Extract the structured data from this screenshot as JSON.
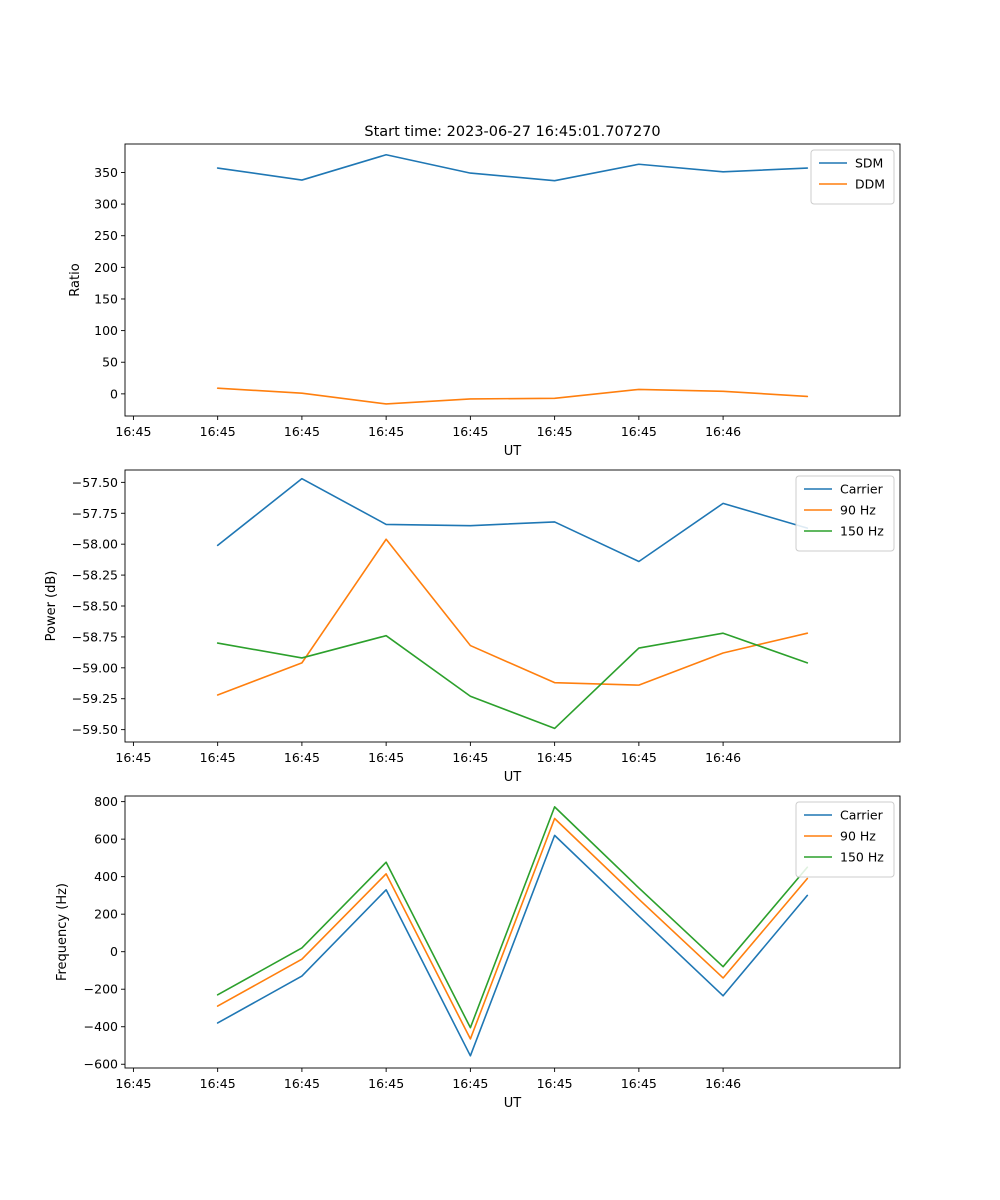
{
  "figure": {
    "title": "Start time: 2023-06-27 16:45:01.707270"
  },
  "colors": {
    "blue": "#1f77b4",
    "orange": "#ff7f0e",
    "green": "#2ca02c",
    "axis": "#000000",
    "legend_border": "#cccccc"
  },
  "chart_data": [
    {
      "type": "line",
      "xlabel": "UT",
      "ylabel": "Ratio",
      "x_tick_labels": [
        "16:45",
        "16:45",
        "16:45",
        "16:45",
        "16:45",
        "16:45",
        "16:45",
        "16:46"
      ],
      "x_index": [
        1,
        2,
        3,
        4,
        5,
        6,
        7,
        8
      ],
      "x_range": [
        -0.1,
        9.1
      ],
      "ylim": [
        -35,
        395
      ],
      "y_ticks": [
        0,
        50,
        100,
        150,
        200,
        250,
        300,
        350
      ],
      "y_tick_labels": [
        "0",
        "50",
        "100",
        "150",
        "200",
        "250",
        "300",
        "350"
      ],
      "legend_position": "upper right",
      "grid": false,
      "series": [
        {
          "name": "SDM",
          "color": "#1f77b4",
          "values": [
            357,
            338,
            378,
            349,
            337,
            363,
            351,
            357
          ]
        },
        {
          "name": "DDM",
          "color": "#ff7f0e",
          "values": [
            9,
            1,
            -16,
            -8,
            -7,
            7,
            4,
            -4
          ]
        }
      ]
    },
    {
      "type": "line",
      "xlabel": "UT",
      "ylabel": "Power (dB)",
      "x_tick_labels": [
        "16:45",
        "16:45",
        "16:45",
        "16:45",
        "16:45",
        "16:45",
        "16:45",
        "16:46"
      ],
      "x_index": [
        1,
        2,
        3,
        4,
        5,
        6,
        7,
        8
      ],
      "x_range": [
        -0.1,
        9.1
      ],
      "ylim": [
        -59.6,
        -57.4
      ],
      "y_ticks": [
        -57.5,
        -57.75,
        -58.0,
        -58.25,
        -58.5,
        -58.75,
        -59.0,
        -59.25,
        -59.5
      ],
      "y_tick_labels": [
        "−57.50",
        "−57.75",
        "−58.00",
        "−58.25",
        "−58.50",
        "−58.75",
        "−59.00",
        "−59.25",
        "−59.50"
      ],
      "legend_position": "upper right",
      "grid": false,
      "series": [
        {
          "name": "Carrier",
          "color": "#1f77b4",
          "values": [
            -58.01,
            -57.47,
            -57.84,
            -57.85,
            -57.82,
            -58.14,
            -57.67,
            -57.87
          ]
        },
        {
          "name": "90 Hz",
          "color": "#ff7f0e",
          "values": [
            -59.22,
            -58.96,
            -57.96,
            -58.82,
            -59.12,
            -59.14,
            -58.88,
            -58.72
          ]
        },
        {
          "name": "150 Hz",
          "color": "#2ca02c",
          "values": [
            -58.8,
            -58.92,
            -58.74,
            -59.23,
            -59.49,
            -58.84,
            -58.72,
            -58.96
          ]
        }
      ]
    },
    {
      "type": "line",
      "xlabel": "UT",
      "ylabel": "Frequency (Hz)",
      "x_tick_labels": [
        "16:45",
        "16:45",
        "16:45",
        "16:45",
        "16:45",
        "16:45",
        "16:45",
        "16:46"
      ],
      "x_index": [
        1,
        2,
        3,
        4,
        5,
        6,
        7,
        8
      ],
      "x_range": [
        -0.1,
        9.1
      ],
      "ylim": [
        -620,
        830
      ],
      "y_ticks": [
        -600,
        -400,
        -200,
        0,
        200,
        400,
        600,
        800
      ],
      "y_tick_labels": [
        "−600",
        "−400",
        "−200",
        "0",
        "200",
        "400",
        "600",
        "800"
      ],
      "legend_position": "upper right",
      "grid": false,
      "series": [
        {
          "name": "Carrier",
          "color": "#1f77b4",
          "values": [
            -380,
            -130,
            330,
            -555,
            620,
            190,
            -235,
            300
          ]
        },
        {
          "name": "90 Hz",
          "color": "#ff7f0e",
          "values": [
            -290,
            -40,
            415,
            -465,
            710,
            280,
            -140,
            390
          ]
        },
        {
          "name": "150 Hz",
          "color": "#2ca02c",
          "values": [
            -230,
            20,
            477,
            -405,
            772,
            340,
            -80,
            450
          ]
        }
      ]
    }
  ]
}
